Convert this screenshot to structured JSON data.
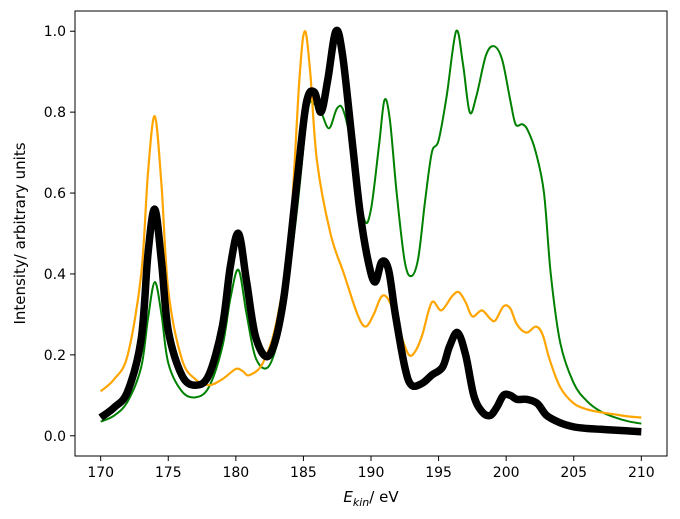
{
  "chart_data": {
    "type": "line",
    "title": "",
    "xlabel": {
      "main": "E",
      "sub": "kin",
      "suffix": "/ eV"
    },
    "ylabel": "Intensity/ arbitrary units",
    "xlim": [
      168.1,
      211.9
    ],
    "ylim": [
      -0.05,
      1.05
    ],
    "xticks": [
      170,
      175,
      180,
      185,
      190,
      195,
      200,
      205,
      210
    ],
    "yticks": [
      0.0,
      0.2,
      0.4,
      0.6,
      0.8,
      1.0
    ],
    "grid": false,
    "legend": "none",
    "series": [
      {
        "color": "#008000",
        "line_style": "thin",
        "points": [
          [
            170,
            0.035
          ],
          [
            171,
            0.05
          ],
          [
            172,
            0.085
          ],
          [
            173,
            0.17
          ],
          [
            173.5,
            0.29
          ],
          [
            174,
            0.38
          ],
          [
            174.5,
            0.3
          ],
          [
            175,
            0.18
          ],
          [
            176,
            0.11
          ],
          [
            177,
            0.095
          ],
          [
            178,
            0.12
          ],
          [
            179,
            0.22
          ],
          [
            179.6,
            0.34
          ],
          [
            180.2,
            0.41
          ],
          [
            180.8,
            0.3
          ],
          [
            181.5,
            0.19
          ],
          [
            182.5,
            0.175
          ],
          [
            183.5,
            0.3
          ],
          [
            184.5,
            0.55
          ],
          [
            185.3,
            0.8
          ],
          [
            185.8,
            0.82
          ],
          [
            186.3,
            0.8
          ],
          [
            186.9,
            0.76
          ],
          [
            187.5,
            0.81
          ],
          [
            188,
            0.8
          ],
          [
            188.8,
            0.68
          ],
          [
            189.5,
            0.535
          ],
          [
            190,
            0.56
          ],
          [
            190.6,
            0.72
          ],
          [
            191,
            0.83
          ],
          [
            191.4,
            0.78
          ],
          [
            191.9,
            0.6
          ],
          [
            192.5,
            0.43
          ],
          [
            193,
            0.395
          ],
          [
            193.5,
            0.44
          ],
          [
            194,
            0.58
          ],
          [
            194.5,
            0.7
          ],
          [
            195,
            0.73
          ],
          [
            195.6,
            0.84
          ],
          [
            196.3,
            1.0
          ],
          [
            196.8,
            0.92
          ],
          [
            197.3,
            0.8
          ],
          [
            197.8,
            0.84
          ],
          [
            198.5,
            0.94
          ],
          [
            199.1,
            0.963
          ],
          [
            199.7,
            0.93
          ],
          [
            200.3,
            0.83
          ],
          [
            200.7,
            0.77
          ],
          [
            201.2,
            0.77
          ],
          [
            201.6,
            0.755
          ],
          [
            202.2,
            0.7
          ],
          [
            202.8,
            0.6
          ],
          [
            203.3,
            0.4
          ],
          [
            204,
            0.23
          ],
          [
            205,
            0.13
          ],
          [
            206,
            0.085
          ],
          [
            207,
            0.06
          ],
          [
            208,
            0.046
          ],
          [
            209,
            0.036
          ],
          [
            210,
            0.03
          ]
        ]
      },
      {
        "color": "#ffa500",
        "line_style": "medium",
        "points": [
          [
            170,
            0.11
          ],
          [
            171,
            0.14
          ],
          [
            172,
            0.2
          ],
          [
            173,
            0.4
          ],
          [
            173.5,
            0.65
          ],
          [
            174,
            0.79
          ],
          [
            174.5,
            0.62
          ],
          [
            175,
            0.36
          ],
          [
            176,
            0.19
          ],
          [
            177,
            0.14
          ],
          [
            178,
            0.125
          ],
          [
            179,
            0.14
          ],
          [
            180,
            0.165
          ],
          [
            180.5,
            0.16
          ],
          [
            181,
            0.15
          ],
          [
            182,
            0.18
          ],
          [
            183,
            0.28
          ],
          [
            184,
            0.5
          ],
          [
            184.7,
            0.88
          ],
          [
            185.1,
            1.0
          ],
          [
            185.5,
            0.9
          ],
          [
            186,
            0.68
          ],
          [
            187,
            0.5
          ],
          [
            188,
            0.4
          ],
          [
            189,
            0.3
          ],
          [
            189.6,
            0.27
          ],
          [
            190.2,
            0.3
          ],
          [
            190.8,
            0.345
          ],
          [
            191.4,
            0.33
          ],
          [
            192.2,
            0.25
          ],
          [
            192.8,
            0.2
          ],
          [
            193.3,
            0.21
          ],
          [
            193.8,
            0.25
          ],
          [
            194.5,
            0.33
          ],
          [
            195.2,
            0.31
          ],
          [
            196,
            0.345
          ],
          [
            196.5,
            0.355
          ],
          [
            197,
            0.33
          ],
          [
            197.5,
            0.295
          ],
          [
            198.2,
            0.31
          ],
          [
            198.8,
            0.29
          ],
          [
            199.2,
            0.285
          ],
          [
            199.8,
            0.32
          ],
          [
            200.3,
            0.315
          ],
          [
            200.8,
            0.275
          ],
          [
            201.5,
            0.255
          ],
          [
            202.2,
            0.27
          ],
          [
            202.7,
            0.25
          ],
          [
            203.2,
            0.19
          ],
          [
            204,
            0.12
          ],
          [
            205,
            0.08
          ],
          [
            206,
            0.065
          ],
          [
            207,
            0.058
          ],
          [
            208,
            0.053
          ],
          [
            209,
            0.048
          ],
          [
            210,
            0.045
          ]
        ]
      },
      {
        "color": "#000000",
        "line_style": "thick",
        "points": [
          [
            170,
            0.045
          ],
          [
            171,
            0.07
          ],
          [
            172,
            0.11
          ],
          [
            173,
            0.24
          ],
          [
            173.5,
            0.45
          ],
          [
            174,
            0.56
          ],
          [
            174.5,
            0.43
          ],
          [
            175,
            0.26
          ],
          [
            176,
            0.15
          ],
          [
            177,
            0.125
          ],
          [
            178,
            0.15
          ],
          [
            179,
            0.27
          ],
          [
            179.6,
            0.42
          ],
          [
            180.2,
            0.5
          ],
          [
            180.8,
            0.38
          ],
          [
            181.5,
            0.24
          ],
          [
            182.5,
            0.2
          ],
          [
            183.5,
            0.33
          ],
          [
            184.5,
            0.62
          ],
          [
            185.2,
            0.82
          ],
          [
            185.8,
            0.85
          ],
          [
            186.3,
            0.8
          ],
          [
            186.8,
            0.88
          ],
          [
            187.4,
            1.0
          ],
          [
            187.9,
            0.94
          ],
          [
            188.6,
            0.73
          ],
          [
            189.2,
            0.55
          ],
          [
            189.8,
            0.43
          ],
          [
            190.3,
            0.38
          ],
          [
            190.8,
            0.43
          ],
          [
            191.3,
            0.41
          ],
          [
            191.8,
            0.3
          ],
          [
            192.5,
            0.17
          ],
          [
            193,
            0.125
          ],
          [
            193.8,
            0.13
          ],
          [
            194.5,
            0.15
          ],
          [
            195.3,
            0.17
          ],
          [
            195.8,
            0.22
          ],
          [
            196.4,
            0.255
          ],
          [
            197,
            0.2
          ],
          [
            197.6,
            0.1
          ],
          [
            198.2,
            0.06
          ],
          [
            198.8,
            0.05
          ],
          [
            199.3,
            0.07
          ],
          [
            199.8,
            0.1
          ],
          [
            200.3,
            0.1
          ],
          [
            200.8,
            0.09
          ],
          [
            201.5,
            0.09
          ],
          [
            202.3,
            0.08
          ],
          [
            203,
            0.05
          ],
          [
            204,
            0.032
          ],
          [
            205,
            0.022
          ],
          [
            206,
            0.018
          ],
          [
            207,
            0.016
          ],
          [
            208,
            0.014
          ],
          [
            209,
            0.012
          ],
          [
            210,
            0.01
          ]
        ]
      }
    ]
  }
}
